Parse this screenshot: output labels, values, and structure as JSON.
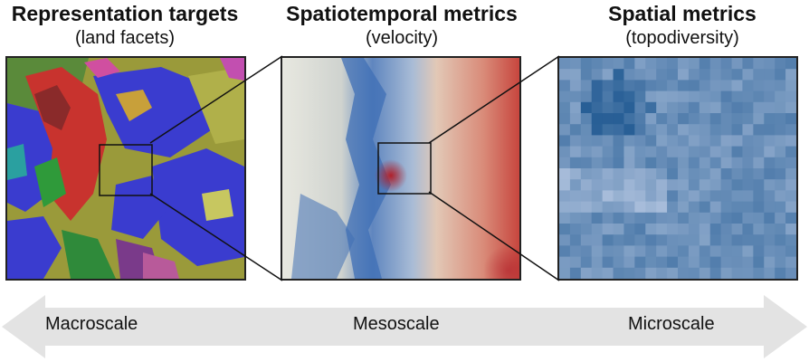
{
  "panels": [
    {
      "title": "Representation targets",
      "subtitle": "(land facets)"
    },
    {
      "title": "Spatiotemporal metrics",
      "subtitle": "(velocity)"
    },
    {
      "title": "Spatial metrics",
      "subtitle": "(topodiversity)"
    }
  ],
  "scales": {
    "macro": "Macroscale",
    "meso": "Mesoscale",
    "micro": "Microscale"
  },
  "colors": {
    "arrow": "#e3e3e3",
    "facet_blue": "#3a3ccf",
    "facet_olive": "#9a9a3a",
    "facet_red": "#c8332e",
    "velocity_blue": "#3f6fb5",
    "velocity_red": "#c7463e",
    "topo_blue": "#6f9cc9"
  }
}
